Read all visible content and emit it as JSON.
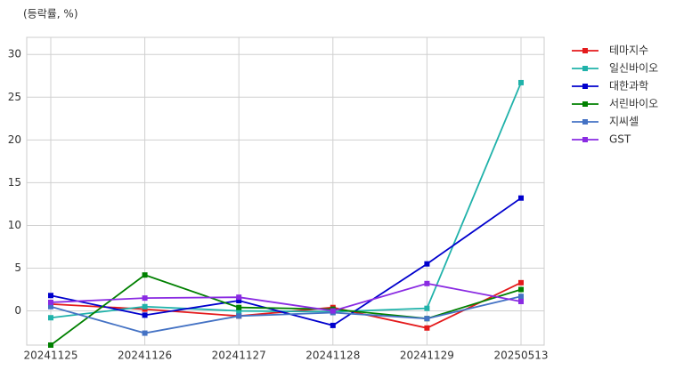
{
  "chart_data": {
    "type": "line",
    "annotation": "(등락률, %)",
    "categories": [
      "20241125",
      "20241126",
      "20241127",
      "20241128",
      "20241129",
      "20250513"
    ],
    "series": [
      {
        "name": "테마지수",
        "color": "#e41a1c",
        "values": [
          0.8,
          0.2,
          -0.6,
          0.4,
          -2.0,
          3.3
        ]
      },
      {
        "name": "일신바이오",
        "color": "#20b2aa",
        "values": [
          -0.8,
          0.5,
          0.0,
          -0.1,
          0.3,
          26.7
        ]
      },
      {
        "name": "대한과학",
        "color": "#0000cd",
        "values": [
          1.8,
          -0.5,
          1.2,
          -1.7,
          5.5,
          13.2
        ]
      },
      {
        "name": "서린바이오",
        "color": "#008000",
        "values": [
          -4.0,
          4.2,
          0.4,
          0.2,
          -0.9,
          2.5
        ]
      },
      {
        "name": "지씨셀",
        "color": "#4472c4",
        "values": [
          0.5,
          -2.6,
          -0.6,
          -0.2,
          -0.9,
          1.7
        ]
      },
      {
        "name": "GST",
        "color": "#8a2be2",
        "values": [
          1.0,
          1.5,
          1.6,
          0.0,
          3.2,
          1.1
        ]
      }
    ],
    "ylim": [
      -4,
      32
    ],
    "yticks": [
      0,
      5,
      10,
      15,
      20,
      25,
      30
    ],
    "grid": true,
    "legend": "outside-right"
  }
}
